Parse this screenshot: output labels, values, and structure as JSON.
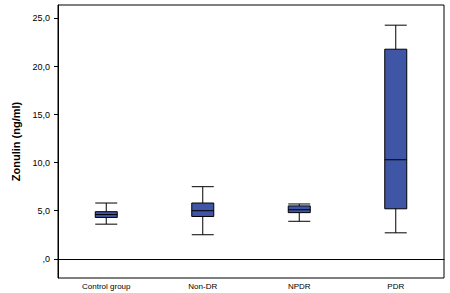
{
  "chart_data": {
    "type": "boxplot",
    "y_label": "Zonulin (ng/ml)",
    "categories": [
      "Control group",
      "Non-DR",
      "NPDR",
      "PDR"
    ],
    "values": [
      [
        3.6,
        4.3,
        4.6,
        4.9,
        5.8
      ],
      [
        2.5,
        4.4,
        5.0,
        5.8,
        7.5
      ],
      [
        3.9,
        4.8,
        5.1,
        5.5,
        5.7
      ],
      [
        2.7,
        5.2,
        10.3,
        21.8,
        24.3
      ]
    ],
    "color": "#3f55a6",
    "ylim": [
      -2,
      26.4
    ],
    "yticks": [
      {
        "value": 0,
        "label": ",0"
      },
      {
        "value": 5,
        "label": "5,0"
      },
      {
        "value": 10,
        "label": "10,0"
      },
      {
        "value": 15,
        "label": "15,0"
      },
      {
        "value": 20,
        "label": "20,0"
      },
      {
        "value": 25,
        "label": "25,0"
      }
    ],
    "grid": false
  }
}
